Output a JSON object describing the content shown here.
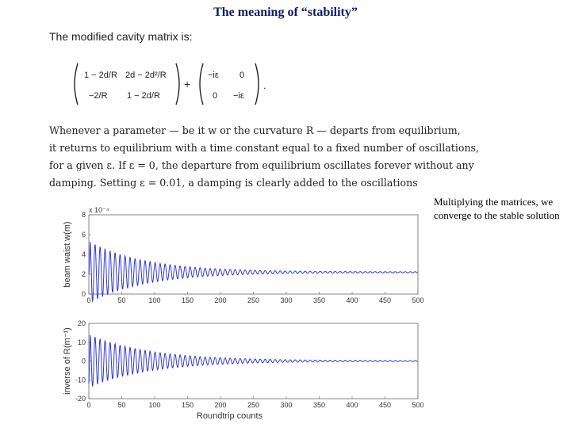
{
  "title": "The meaning of “stability”",
  "intro_text": "The modified cavity matrix is:",
  "matrix": {
    "m11": "1 − 2d/R",
    "m12": "2d − 2d²/R",
    "m21": "−2/R",
    "m22": "1 − 2d/R",
    "plus": "+",
    "e11": "−iε",
    "e12": "0",
    "e21": "0",
    "e22": "−iε",
    "period": "."
  },
  "paragraph_lines": [
    "Whenever a parameter — be it w or the curvature R — departs from equilibrium,",
    "it returns to equilibrium with a time constant equal to a fixed number of oscillations,",
    "for a given ε. If ε = 0, the departure from equilibrium oscillates forever without any",
    "damping. Setting ε = 0.01, a damping is clearly added to the oscillations"
  ],
  "side_note": "Multiplying the matrices, we converge to the stable solution",
  "chart_data": [
    {
      "type": "line",
      "ylabel": "beam waist w(m)",
      "xlabel": "",
      "scale_label": "x 10⁻⁴",
      "xlim": [
        0,
        500
      ],
      "ylim": [
        0,
        8
      ],
      "x_ticks": [
        "0",
        "50",
        "100",
        "150",
        "200",
        "250",
        "300",
        "350",
        "400",
        "450",
        "500"
      ],
      "y_ticks": [
        "0",
        "2",
        "4",
        "6",
        "8"
      ],
      "series": [
        {
          "values_model": {
            "baseline": 2.2,
            "initial_amplitude": 3.1,
            "decay_per_count": 0.012,
            "period_counts": 7.6,
            "start": 2.0,
            "floor_amplitude": 0.05
          }
        }
      ],
      "color": "#2f37d8"
    },
    {
      "type": "line",
      "ylabel": "inverse of R(m⁻¹)",
      "xlabel": "Roundtrip counts",
      "xlim": [
        0,
        500
      ],
      "ylim": [
        -20,
        20
      ],
      "x_ticks": [
        "0",
        "50",
        "100",
        "150",
        "200",
        "250",
        "300",
        "350",
        "400",
        "450",
        "500"
      ],
      "y_ticks": [
        "-20",
        "-10",
        "0",
        "10",
        "20"
      ],
      "series": [
        {
          "values_model": {
            "baseline": 0,
            "initial_amplitude": 14,
            "decay_per_count": 0.011,
            "period_counts": 7.6,
            "start": -12,
            "floor_amplitude": 0.2
          }
        }
      ],
      "color": "#2f37d8"
    }
  ]
}
